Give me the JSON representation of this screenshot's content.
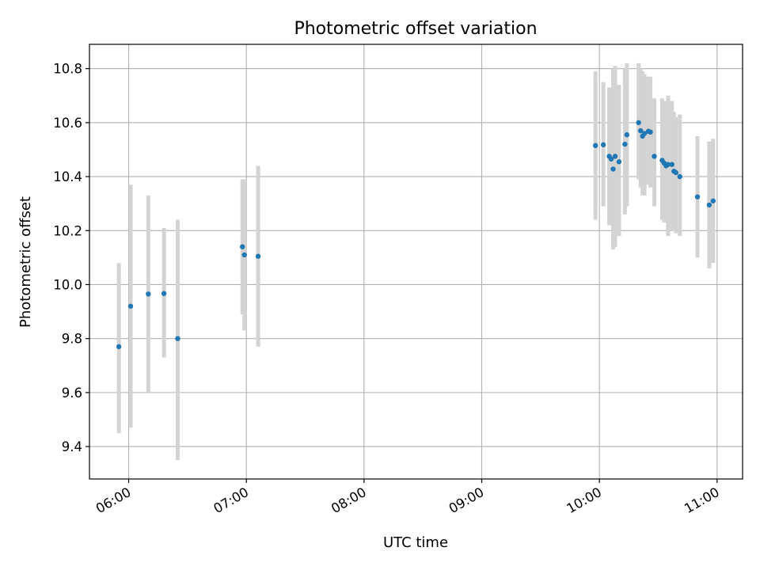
{
  "chart_data": {
    "type": "scatter",
    "title": "Photometric offset variation",
    "xlabel": "UTC time",
    "ylabel": "Photometric offset",
    "x_unit": "hour",
    "xlim": [
      "05:40",
      "11:13"
    ],
    "ylim": [
      9.28,
      10.89
    ],
    "xticks": [
      "06:00",
      "07:00",
      "08:00",
      "09:00",
      "10:00",
      "11:00"
    ],
    "yticks": [
      9.4,
      9.6,
      9.8,
      10.0,
      10.2,
      10.4,
      10.6,
      10.8
    ],
    "grid": true,
    "colors": {
      "point": "#1f77b4",
      "errorbar": "#d3d3d3"
    },
    "points": [
      {
        "x": "05:55",
        "y": 9.77,
        "low": 9.45,
        "high": 10.08
      },
      {
        "x": "06:01",
        "y": 9.92,
        "low": 9.47,
        "high": 10.37
      },
      {
        "x": "06:10",
        "y": 9.965,
        "low": 9.6,
        "high": 10.33
      },
      {
        "x": "06:18",
        "y": 9.967,
        "low": 9.73,
        "high": 10.21
      },
      {
        "x": "06:25",
        "y": 9.8,
        "low": 9.35,
        "high": 10.24
      },
      {
        "x": "06:58",
        "y": 10.14,
        "low": 9.89,
        "high": 10.39
      },
      {
        "x": "06:59",
        "y": 10.11,
        "low": 9.83,
        "high": 10.39
      },
      {
        "x": "07:06",
        "y": 10.105,
        "low": 9.77,
        "high": 10.44
      },
      {
        "x": "09:58",
        "y": 10.515,
        "low": 10.24,
        "high": 10.79
      },
      {
        "x": "10:02",
        "y": 10.518,
        "low": 10.29,
        "high": 10.75
      },
      {
        "x": "10:05",
        "y": 10.475,
        "low": 10.22,
        "high": 10.73
      },
      {
        "x": "10:06",
        "y": 10.465,
        "low": 10.22,
        "high": 10.72
      },
      {
        "x": "10:07",
        "y": 10.428,
        "low": 10.13,
        "high": 10.8
      },
      {
        "x": "10:08",
        "y": 10.475,
        "low": 10.14,
        "high": 10.81
      },
      {
        "x": "10:10",
        "y": 10.455,
        "low": 10.18,
        "high": 10.74
      },
      {
        "x": "10:13",
        "y": 10.52,
        "low": 10.26,
        "high": 10.8
      },
      {
        "x": "10:14",
        "y": 10.555,
        "low": 10.29,
        "high": 10.82
      },
      {
        "x": "10:20",
        "y": 10.6,
        "low": 10.39,
        "high": 10.82
      },
      {
        "x": "10:21",
        "y": 10.57,
        "low": 10.36,
        "high": 10.8
      },
      {
        "x": "10:22",
        "y": 10.55,
        "low": 10.33,
        "high": 10.79
      },
      {
        "x": "10:23",
        "y": 10.56,
        "low": 10.33,
        "high": 10.78
      },
      {
        "x": "10:25",
        "y": 10.568,
        "low": 10.37,
        "high": 10.77
      },
      {
        "x": "10:26",
        "y": 10.565,
        "low": 10.36,
        "high": 10.77
      },
      {
        "x": "10:28",
        "y": 10.475,
        "low": 10.29,
        "high": 10.69
      },
      {
        "x": "10:32",
        "y": 10.46,
        "low": 10.24,
        "high": 10.69
      },
      {
        "x": "10:33",
        "y": 10.45,
        "low": 10.23,
        "high": 10.68
      },
      {
        "x": "10:34",
        "y": 10.44,
        "low": 10.23,
        "high": 10.66
      },
      {
        "x": "10:35",
        "y": 10.445,
        "low": 10.18,
        "high": 10.7
      },
      {
        "x": "10:37",
        "y": 10.445,
        "low": 10.2,
        "high": 10.68
      },
      {
        "x": "10:38",
        "y": 10.42,
        "low": 10.2,
        "high": 10.64
      },
      {
        "x": "10:39",
        "y": 10.415,
        "low": 10.19,
        "high": 10.62
      },
      {
        "x": "10:41",
        "y": 10.4,
        "low": 10.18,
        "high": 10.63
      },
      {
        "x": "10:50",
        "y": 10.325,
        "low": 10.1,
        "high": 10.55
      },
      {
        "x": "10:56",
        "y": 10.295,
        "low": 10.06,
        "high": 10.53
      },
      {
        "x": "10:58",
        "y": 10.31,
        "low": 10.08,
        "high": 10.54
      }
    ]
  }
}
